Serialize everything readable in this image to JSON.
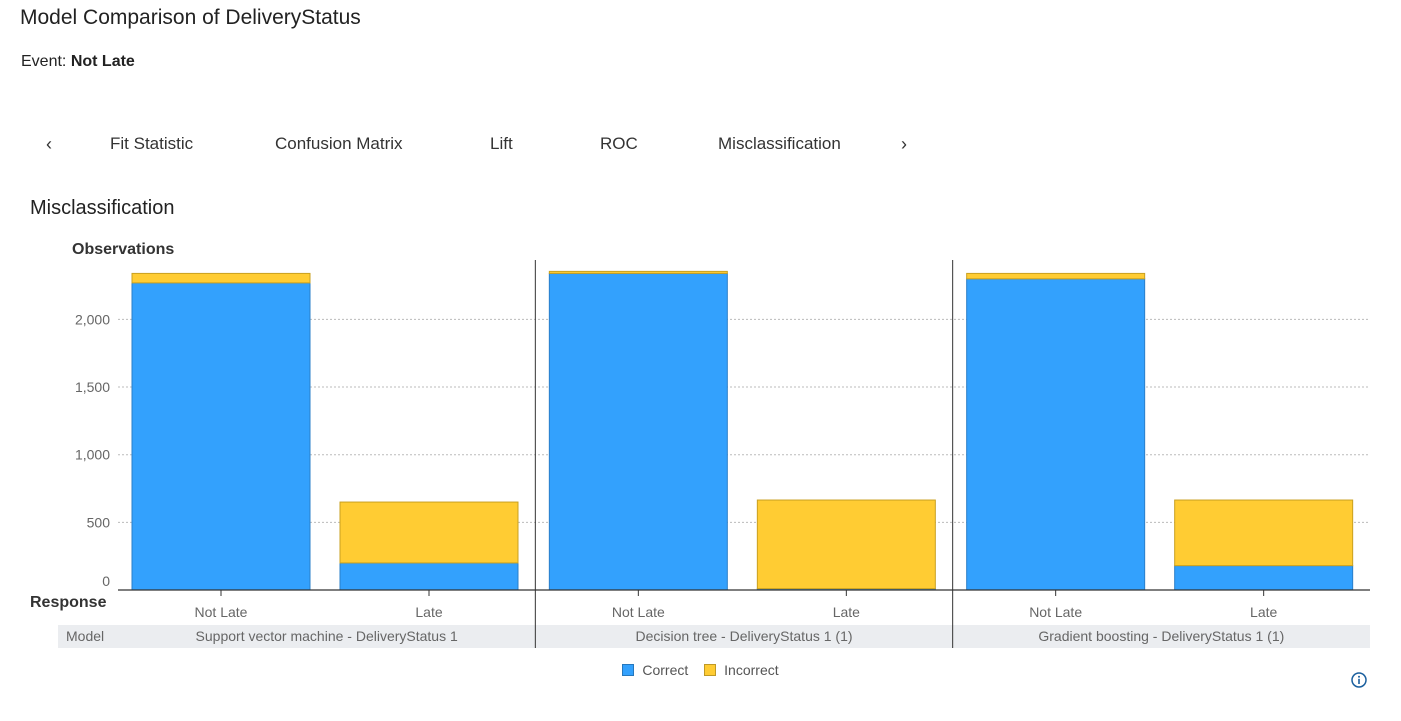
{
  "header": {
    "title": "Model Comparison of DeliveryStatus",
    "event_label": "Event:",
    "event_value": "Not Late"
  },
  "tabs": {
    "prev_icon": "chevron-left-icon",
    "next_icon": "chevron-right-icon",
    "items": [
      "Fit Statistic",
      "Confusion Matrix",
      "Lift",
      "ROC",
      "Misclassification"
    ]
  },
  "section_title": "Misclassification",
  "colors": {
    "correct": "#33a1fd",
    "incorrect": "#ffcc33",
    "grid": "#bbbbbb",
    "band": "#ebedf0"
  },
  "chart_data": {
    "type": "bar",
    "stacked": true,
    "ylabel": "Observations",
    "xlabel": "Response",
    "group_axis_label": "Model",
    "ylim": [
      0,
      2380
    ],
    "yticks": [
      0,
      500,
      1000,
      1500,
      2000
    ],
    "ytick_labels": [
      "0",
      "500",
      "1,000",
      "1,500",
      "2,000"
    ],
    "grid": true,
    "legend_position": "bottom",
    "groups": [
      {
        "model": "Support vector machine - DeliveryStatus 1",
        "categories": [
          "Not Late",
          "Late"
        ],
        "correct": [
          2270,
          200
        ],
        "incorrect": [
          70,
          450
        ]
      },
      {
        "model": "Decision tree - DeliveryStatus 1 (1)",
        "categories": [
          "Not Late",
          "Late"
        ],
        "correct": [
          2340,
          10
        ],
        "incorrect": [
          15,
          655
        ]
      },
      {
        "model": "Gradient boosting - DeliveryStatus 1 (1)",
        "categories": [
          "Not Late",
          "Late"
        ],
        "correct": [
          2300,
          180
        ],
        "incorrect": [
          40,
          485
        ]
      }
    ],
    "series": [
      {
        "name": "Correct"
      },
      {
        "name": "Incorrect"
      }
    ]
  },
  "info_icon": "info-icon"
}
